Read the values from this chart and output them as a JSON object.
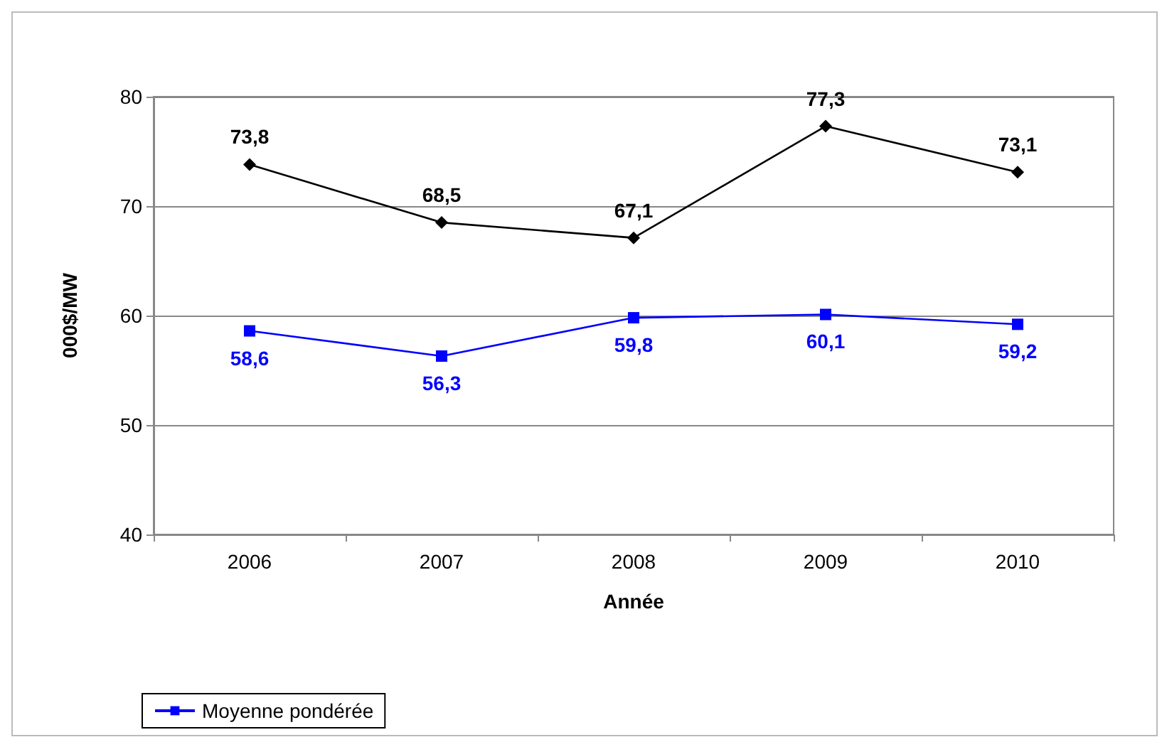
{
  "chart_data": {
    "type": "line",
    "xlabel": "Année",
    "ylabel": "000$/MW",
    "categories": [
      "2006",
      "2007",
      "2008",
      "2009",
      "2010"
    ],
    "series": [
      {
        "color": "#000000",
        "marker": "diamond",
        "values": [
          73.8,
          68.5,
          67.1,
          77.3,
          73.1
        ],
        "value_labels": [
          "73,8",
          "68,5",
          "67,1",
          "77,3",
          "73,1"
        ]
      },
      {
        "name": "Moyenne pondérée",
        "color": "#0000ff",
        "marker": "square",
        "values": [
          58.6,
          56.3,
          59.8,
          60.1,
          59.2
        ],
        "value_labels": [
          "58,6",
          "56,3",
          "59,8",
          "60,1",
          "59,2"
        ]
      }
    ],
    "ylim": [
      40,
      80
    ],
    "yticks": [
      40,
      50,
      60,
      70,
      80
    ],
    "grid": "y",
    "legend": "bottom left",
    "line_style": "solid"
  }
}
